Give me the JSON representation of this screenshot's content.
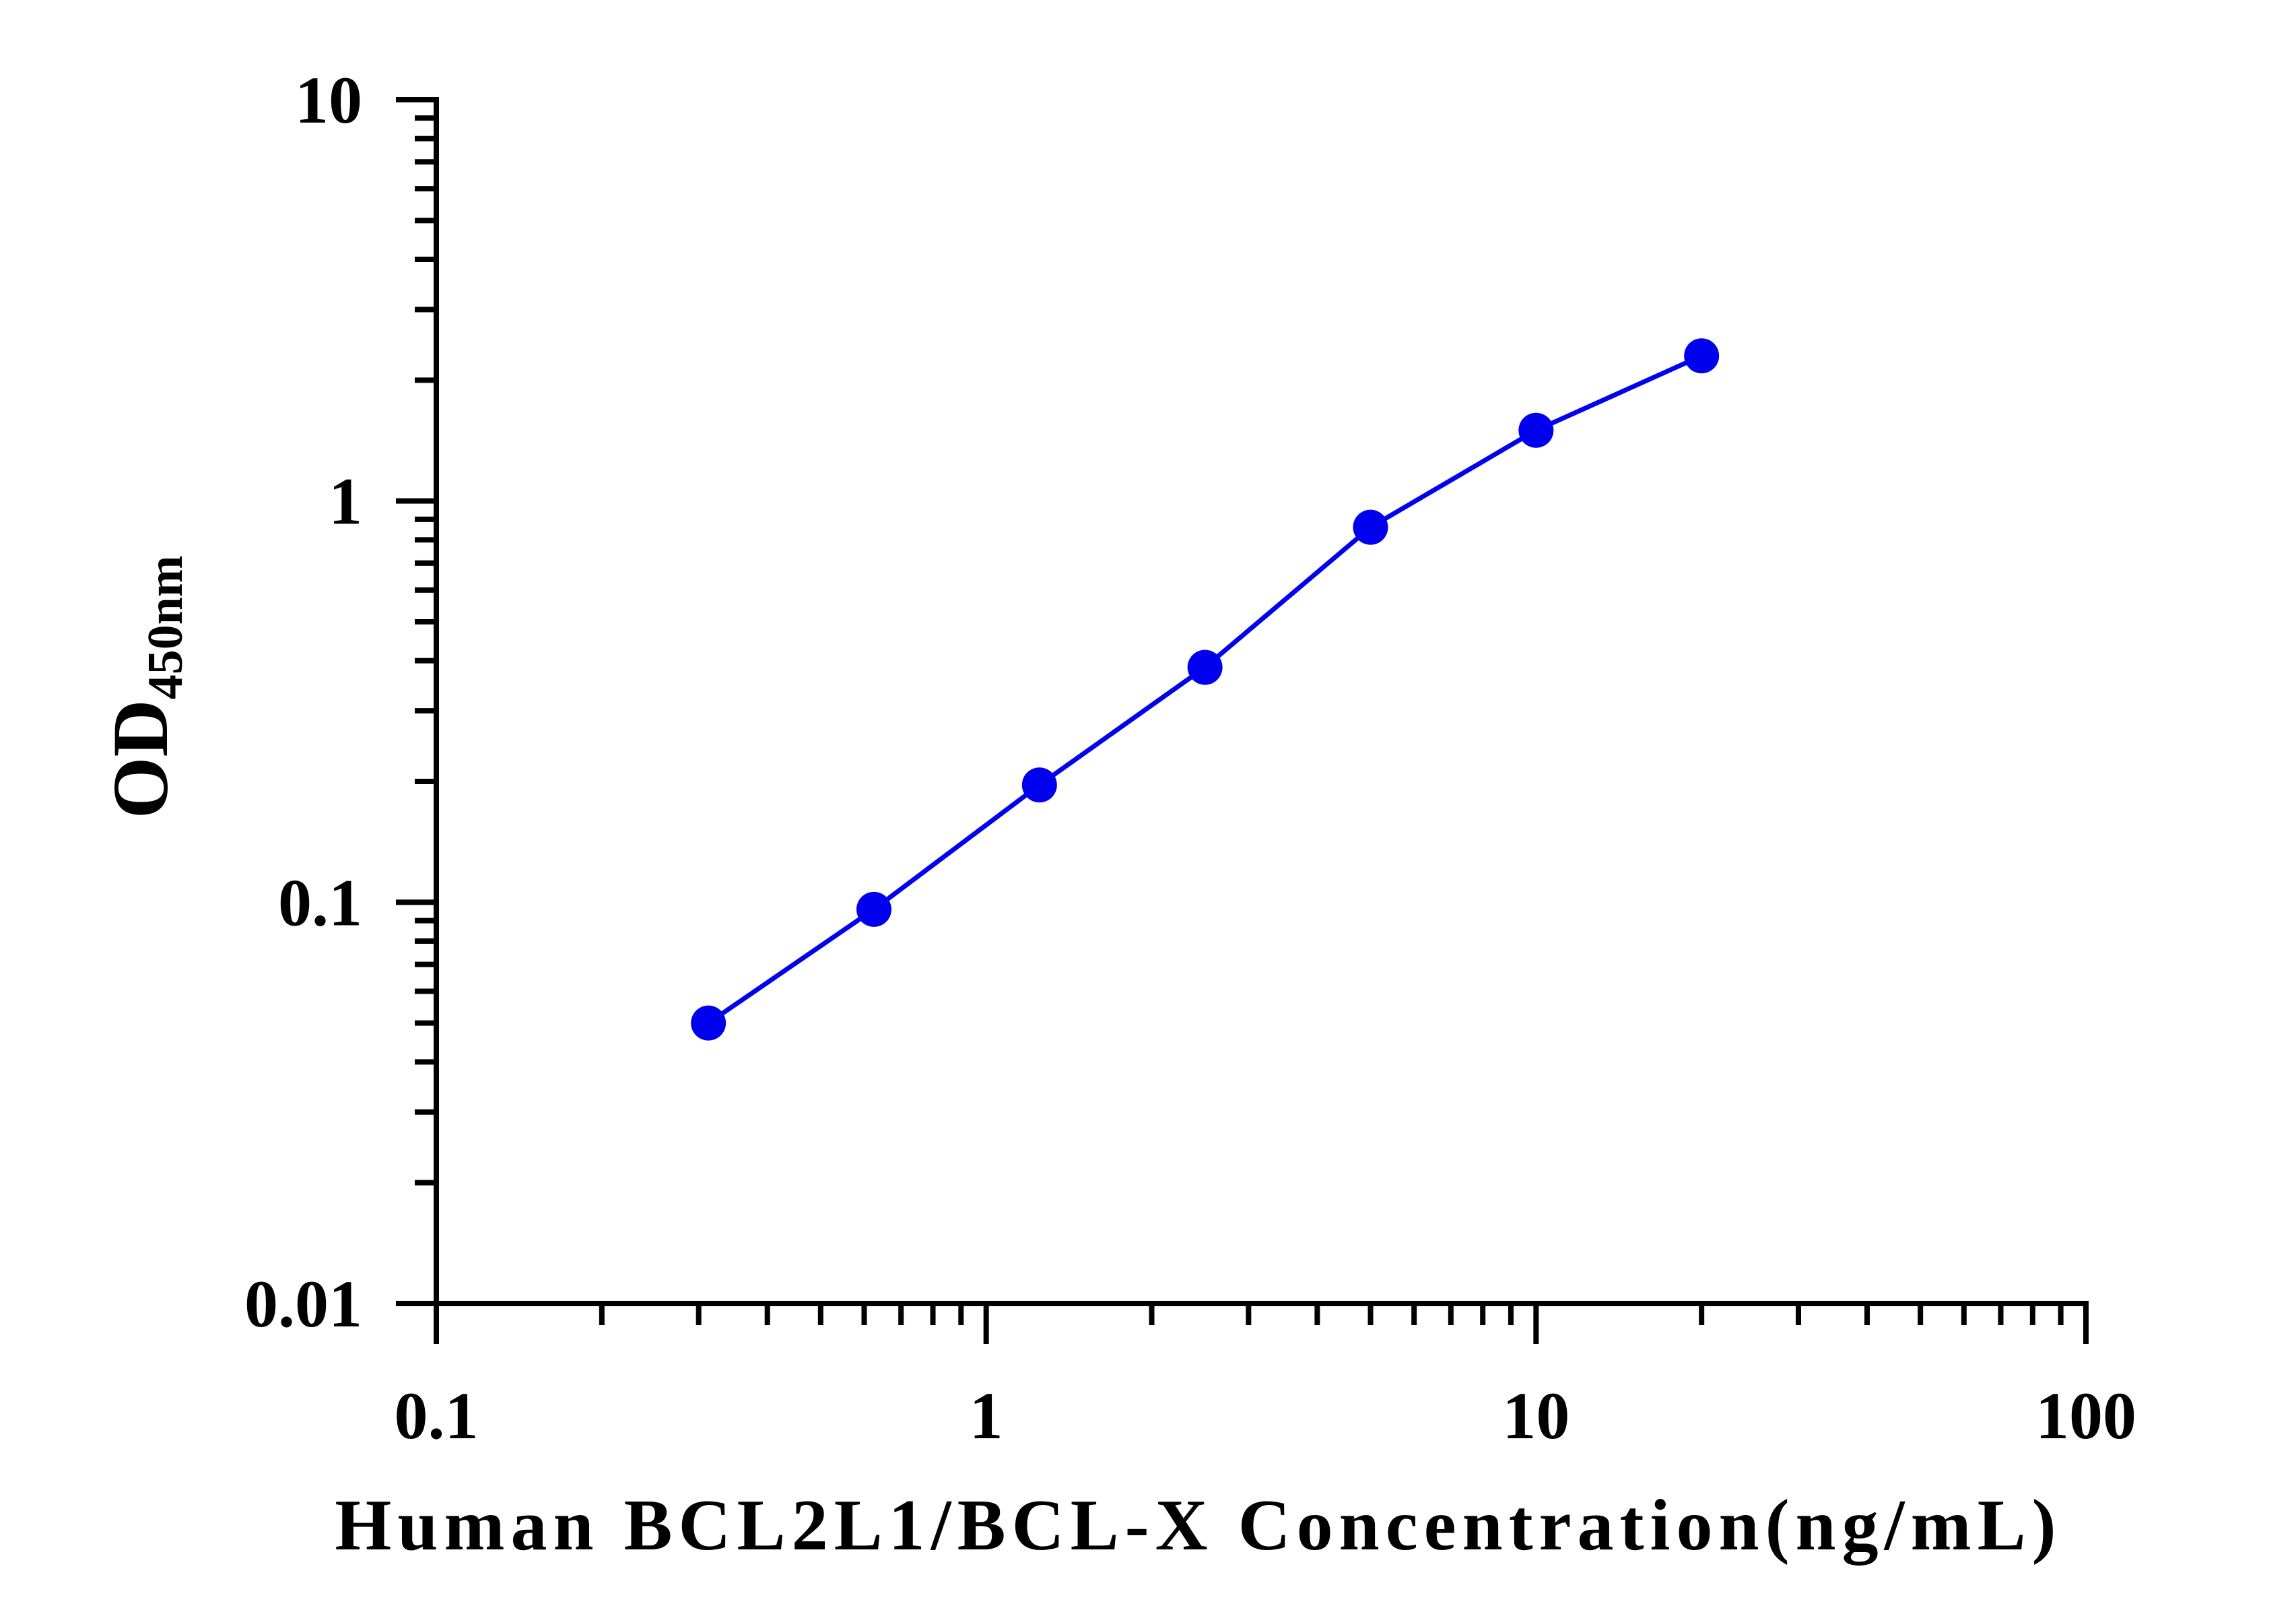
{
  "chart_data": {
    "type": "line",
    "xlabel": "Human BCL2L1/BCL-X Concentration(ng/mL)",
    "ylabel": "OD",
    "ylabel_subscript": "450nm",
    "x_scale": "log",
    "y_scale": "log",
    "xlim": [
      0.1,
      100
    ],
    "ylim": [
      0.01,
      10
    ],
    "x_tick_labels": [
      "0.1",
      "1",
      "10",
      "100"
    ],
    "y_tick_labels": [
      "0.01",
      "0.1",
      "1",
      "10"
    ],
    "grid": false,
    "legend": "none",
    "series": [
      {
        "x": [
          0.3125,
          0.625,
          1.25,
          2.5,
          5,
          10,
          20
        ],
        "y": [
          0.05,
          0.096,
          0.196,
          0.385,
          0.86,
          1.5,
          2.3
        ],
        "color": "#0000ee",
        "marker": "circle"
      }
    ]
  }
}
